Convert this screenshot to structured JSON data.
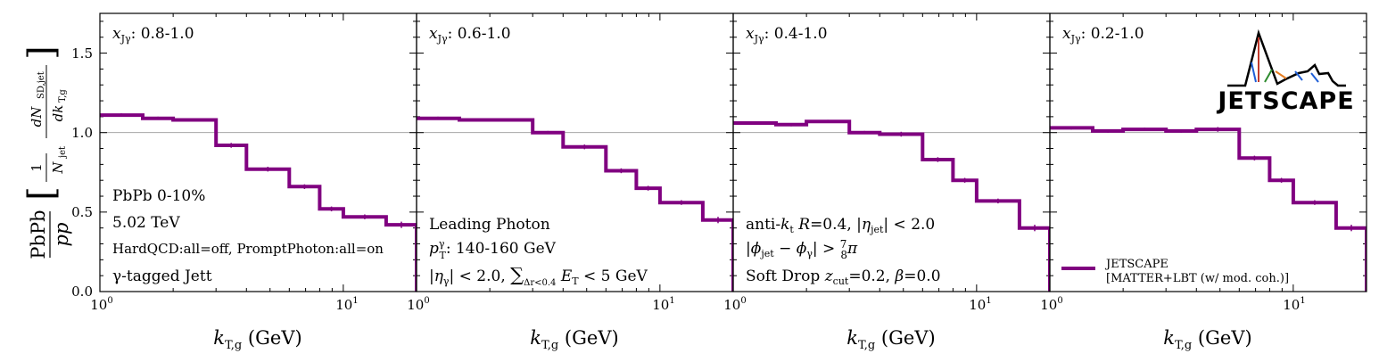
{
  "chart_data": {
    "type": "line",
    "style": "step-histogram with error bars",
    "ylabel_main": "PbPb / pp",
    "ylabel_quantity": "[ (1/N_jet) dN_SD,jet / dk_T,g ]",
    "xlabel": "k_T,g (GeV)",
    "xscale": "log",
    "xlim": [
      1,
      20
    ],
    "ylim": [
      0,
      1.75
    ],
    "yticks": [
      0.0,
      0.5,
      1.0,
      1.5
    ],
    "ytick_labels": [
      "0.0",
      "0.5",
      "1.0",
      "1.5"
    ],
    "xtick_labels": [
      "10⁰",
      "10¹"
    ],
    "reference_line_y": 1.0,
    "bin_edges": [
      1,
      1.5,
      2,
      3,
      4,
      6,
      8,
      10,
      15,
      20
    ],
    "panels": [
      {
        "label": "x_Jγ: 0.8-1.0",
        "values": [
          1.11,
          1.09,
          1.08,
          0.92,
          0.77,
          0.66,
          0.52,
          0.47,
          0.42
        ],
        "errors": [
          0.01,
          0.01,
          0.01,
          0.015,
          0.015,
          0.015,
          0.015,
          0.015,
          0.02
        ]
      },
      {
        "label": "x_Jγ: 0.6-1.0",
        "values": [
          1.09,
          1.08,
          1.08,
          1.0,
          0.91,
          0.76,
          0.65,
          0.56,
          0.45
        ],
        "errors": [
          0.01,
          0.01,
          0.01,
          0.01,
          0.015,
          0.015,
          0.015,
          0.015,
          0.02
        ]
      },
      {
        "label": "x_Jγ: 0.4-1.0",
        "values": [
          1.06,
          1.05,
          1.07,
          1.0,
          0.99,
          0.83,
          0.7,
          0.57,
          0.4
        ],
        "errors": [
          0.01,
          0.01,
          0.01,
          0.01,
          0.015,
          0.015,
          0.015,
          0.015,
          0.02
        ]
      },
      {
        "label": "x_Jγ: 0.2-1.0",
        "values": [
          1.03,
          1.01,
          1.02,
          1.01,
          1.02,
          0.84,
          0.7,
          0.56,
          0.4
        ],
        "errors": [
          0.01,
          0.01,
          0.01,
          0.01,
          0.015,
          0.015,
          0.015,
          0.015,
          0.02
        ]
      }
    ],
    "series": [
      {
        "name": "JETSCAPE",
        "subname": "[MATTER+LBT (w/ mod. coh.)]",
        "color": "#800080"
      }
    ],
    "legend_placement": "bottom-right",
    "annotations": {
      "panel1": [
        "PbPb 0-10%",
        "5.02 TeV",
        "HardQCD:all=off, PromptPhoton:all=on",
        "γ-tagged Jett"
      ],
      "panel2": [
        "Leading Photon",
        "p_T^γ: 140-160 GeV",
        "|η_γ| < 2.0, Σ_Δr<0.4 E_T < 5 GeV"
      ],
      "panel3": [
        "anti-k_t R=0.4, |η_jet| < 2.0",
        "|φ_jet − φ_γ| > 7/8 π",
        "Soft Drop z_cut=0.2, β=0.0"
      ]
    },
    "logo_text": "JETSCAPE"
  }
}
